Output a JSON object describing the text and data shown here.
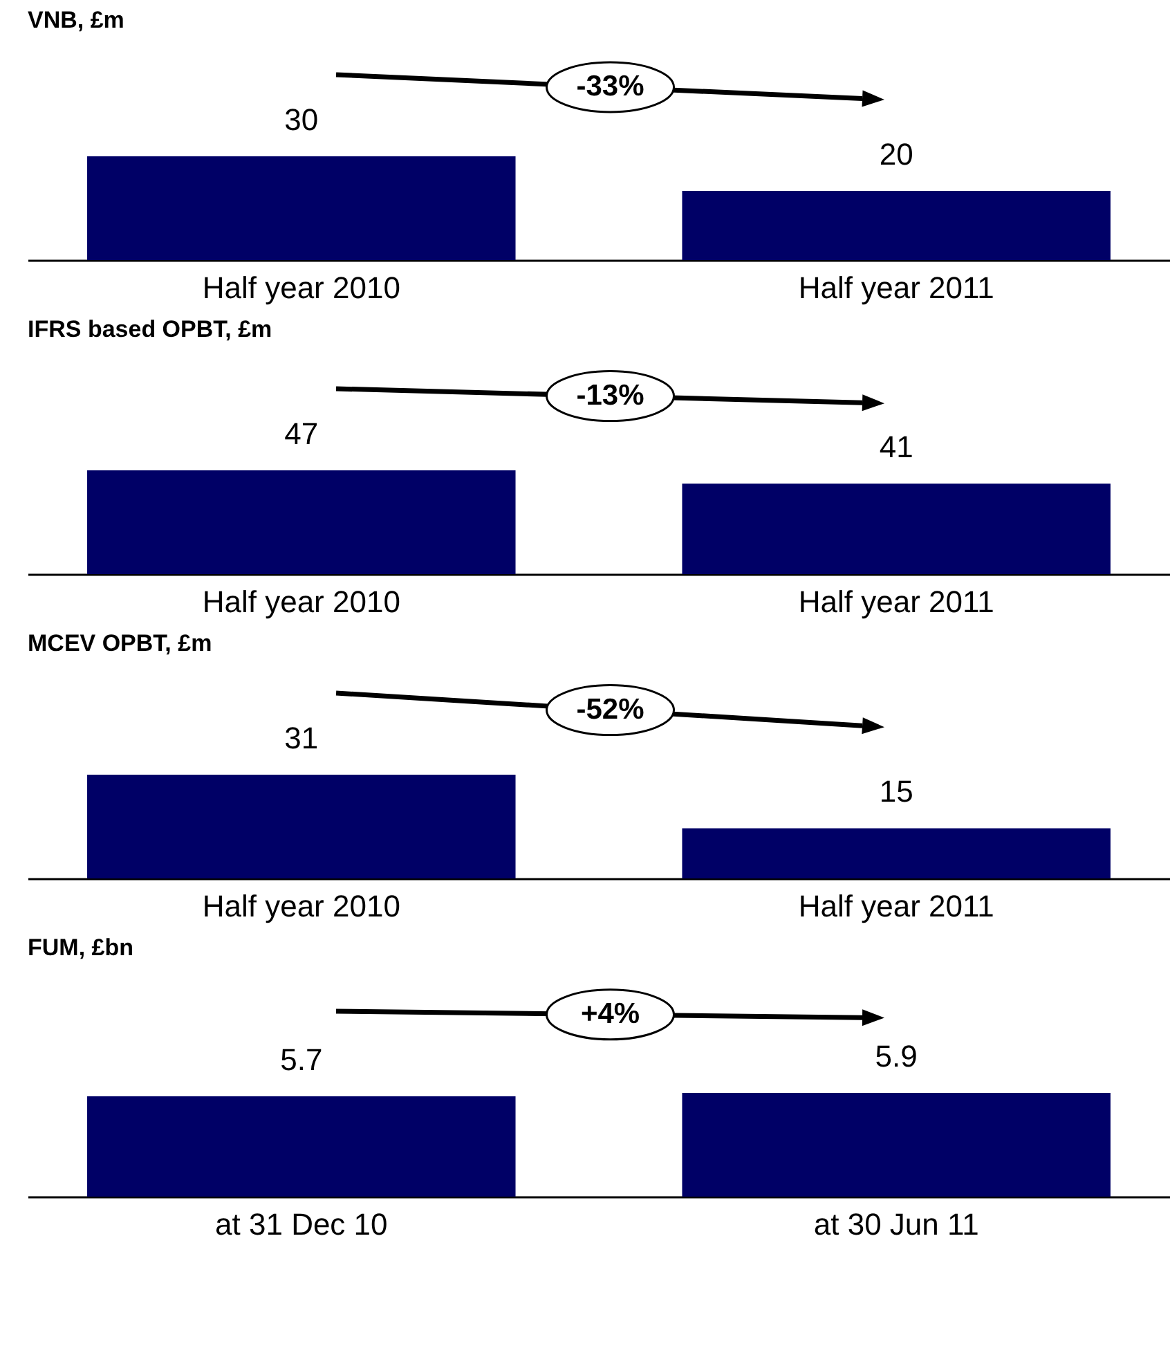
{
  "chart_data": [
    {
      "type": "bar",
      "title": "VNB, £m",
      "categories": [
        "Half year 2010",
        "Half year 2011"
      ],
      "values": [
        30,
        20
      ],
      "color": "#000066",
      "data_labels": true,
      "tick_labels": "x",
      "annotations": [
        "-33%"
      ]
    },
    {
      "type": "bar",
      "title": "IFRS based OPBT, £m",
      "categories": [
        "Half year 2010",
        "Half year 2011"
      ],
      "values": [
        47,
        41
      ],
      "color": "#000066",
      "data_labels": true,
      "tick_labels": "x",
      "annotations": [
        "-13%"
      ]
    },
    {
      "type": "bar",
      "title": "MCEV OPBT, £m",
      "categories": [
        "Half year 2010",
        "Half year 2011"
      ],
      "values": [
        31,
        15
      ],
      "color": "#000066",
      "data_labels": true,
      "tick_labels": "x",
      "annotations": [
        "-52%"
      ]
    },
    {
      "type": "bar",
      "title": "FUM, £bn",
      "categories": [
        "at 31 Dec 10",
        "at 30 Jun 11"
      ],
      "values": [
        5.7,
        5.9
      ],
      "color": "#000066",
      "data_labels": true,
      "tick_labels": "x",
      "annotations": [
        "+4%"
      ]
    }
  ]
}
